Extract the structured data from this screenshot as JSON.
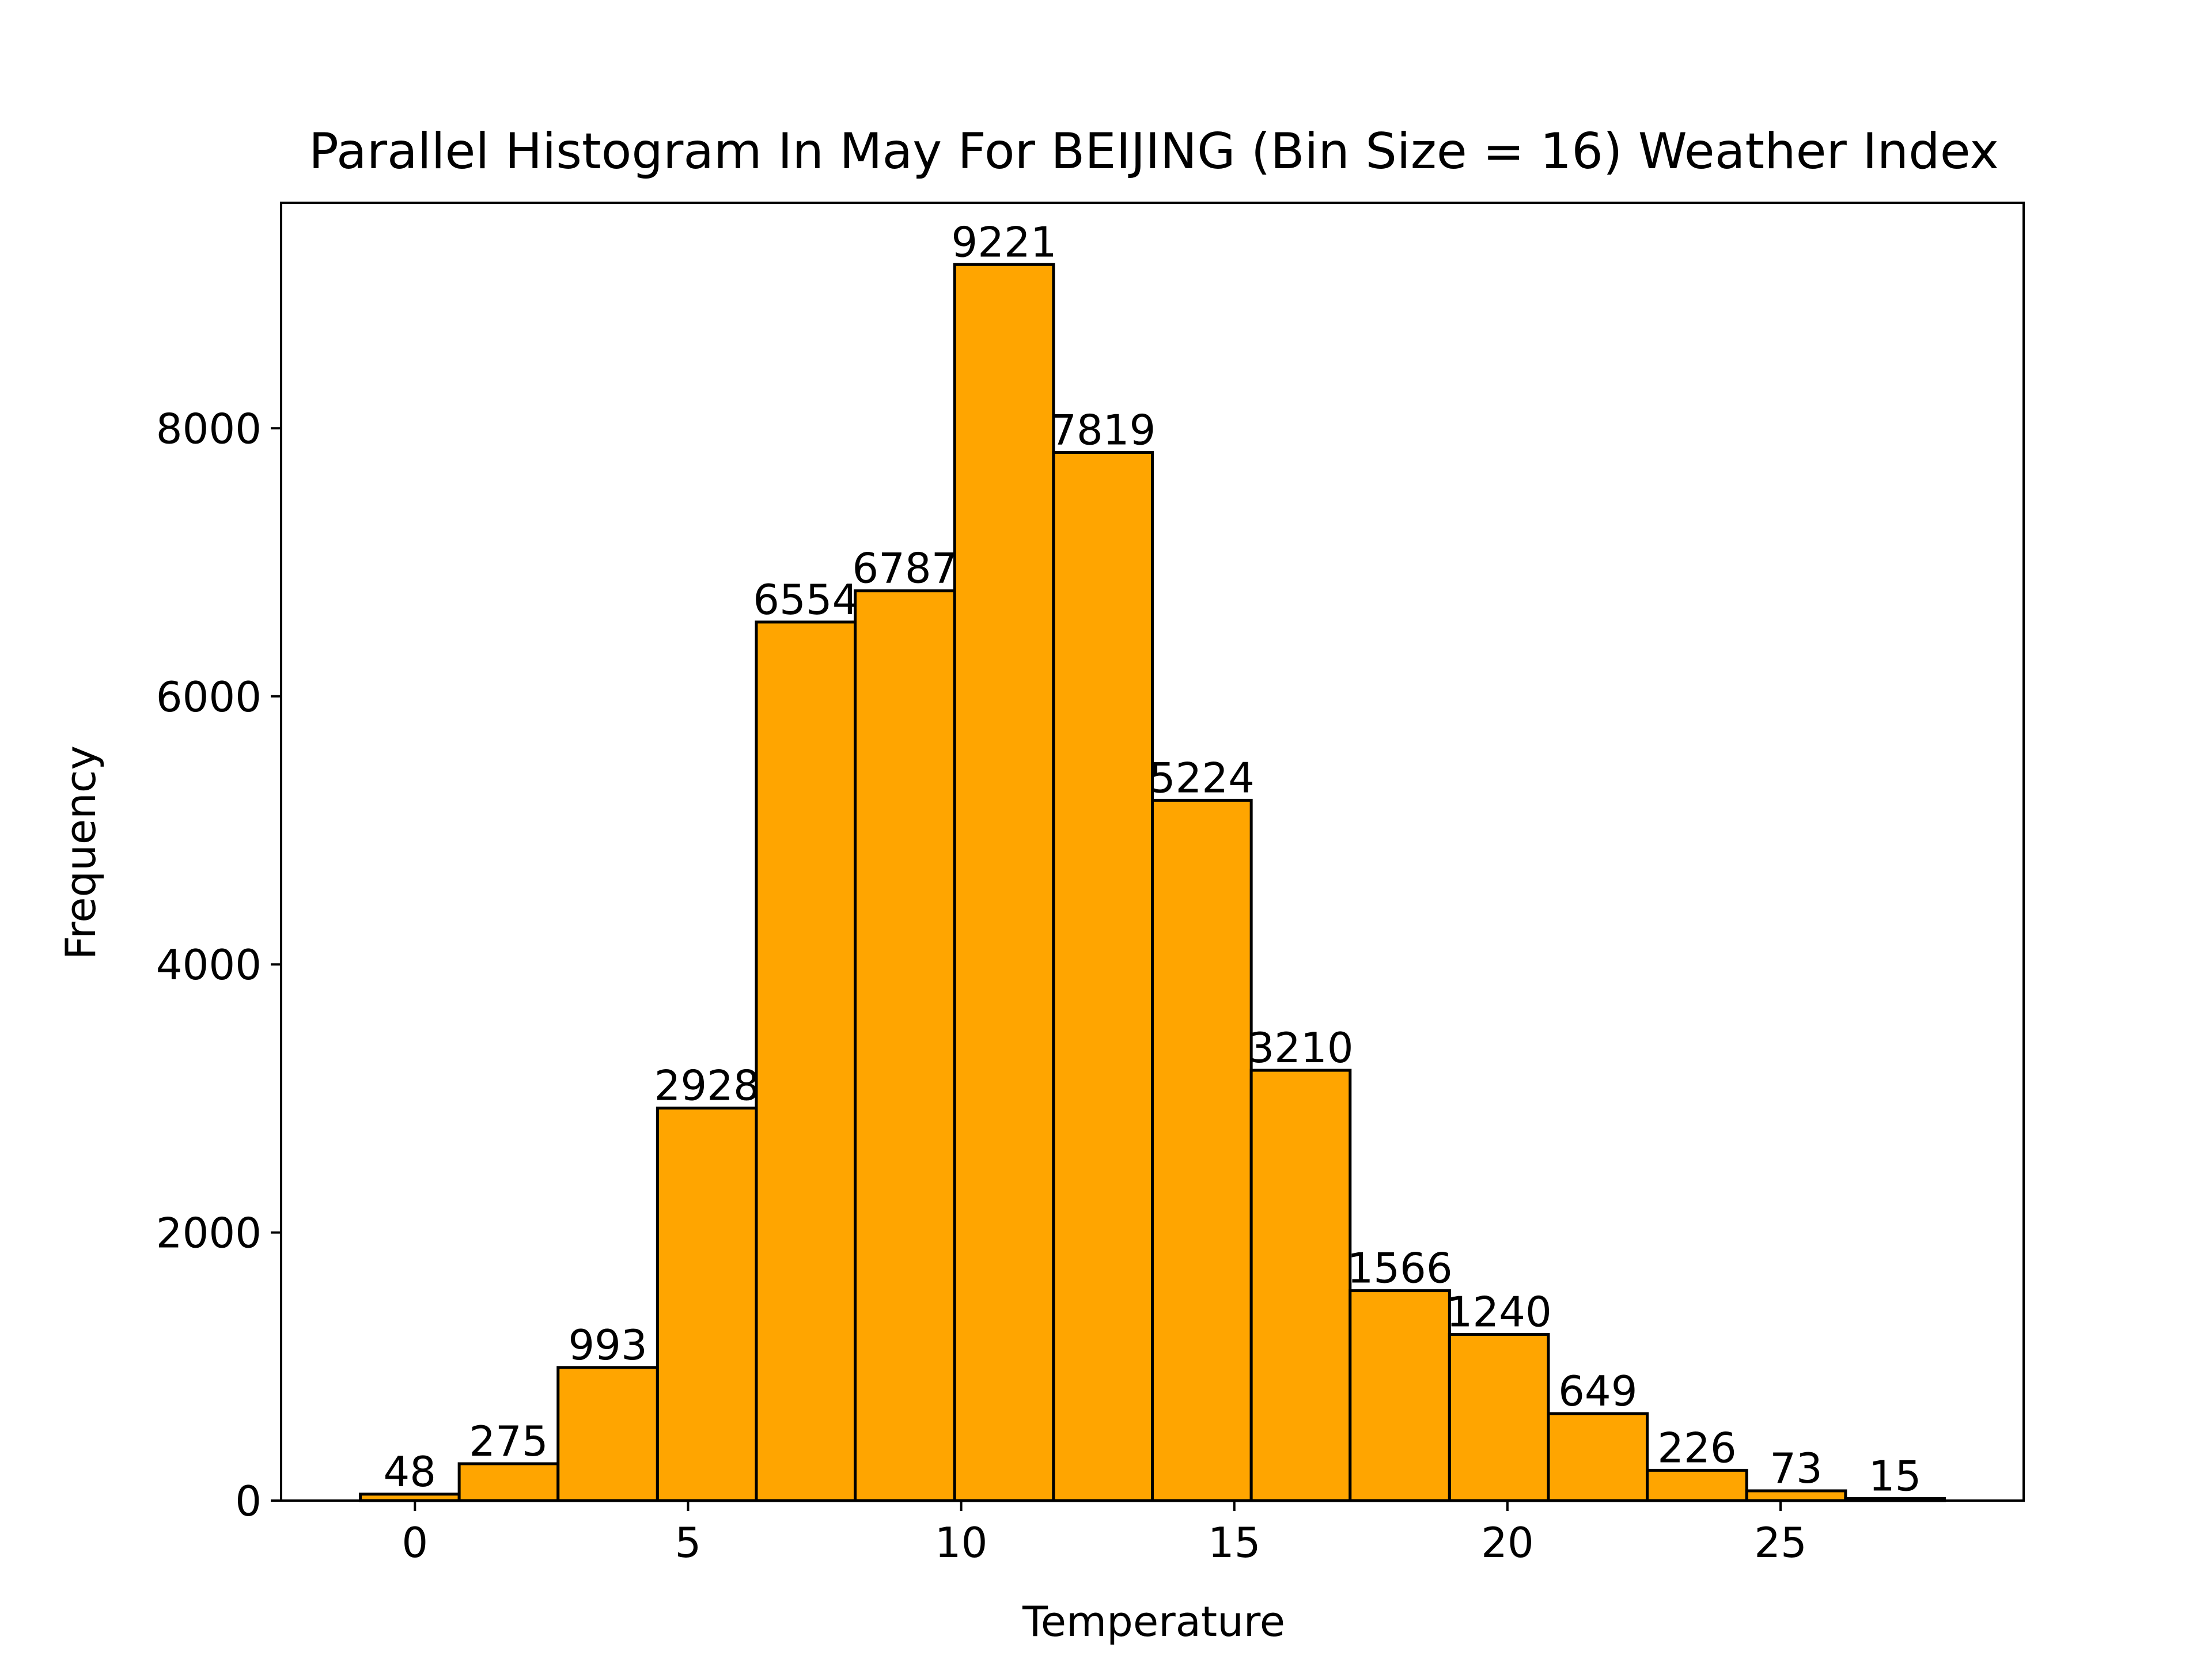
{
  "chart_data": {
    "type": "bar",
    "title": "Parallel Histogram In May For BEIJING (Bin Size = 16) Weather Index",
    "xlabel": "Temperature",
    "ylabel": "Frequency",
    "bin_edges": [
      -1.0,
      0.81,
      2.62,
      4.44,
      6.25,
      8.06,
      9.88,
      11.69,
      13.5,
      15.31,
      17.12,
      18.94,
      20.75,
      22.56,
      24.38,
      26.19,
      28.0
    ],
    "values": [
      48,
      275,
      993,
      2928,
      6554,
      6787,
      9221,
      7819,
      5224,
      3210,
      1566,
      1240,
      649,
      226,
      73,
      15
    ],
    "data_labels": [
      "48",
      "275",
      "993",
      "2928",
      "6554",
      "6787",
      "9221",
      "7819",
      "5224",
      "3210",
      "1566",
      "1240",
      "649",
      "226",
      "73",
      "15"
    ],
    "xlim": [
      -2.45,
      29.45
    ],
    "ylim": [
      0,
      9682
    ],
    "x_ticks": [
      0,
      5,
      10,
      15,
      20,
      25
    ],
    "x_tick_labels": [
      "0",
      "5",
      "10",
      "15",
      "20",
      "25"
    ],
    "y_ticks": [
      0,
      2000,
      4000,
      6000,
      8000
    ],
    "y_tick_labels": [
      "0",
      "2000",
      "4000",
      "6000",
      "8000"
    ],
    "grid": false,
    "bar_color": "#ffa500",
    "edge_color": "#000000"
  }
}
